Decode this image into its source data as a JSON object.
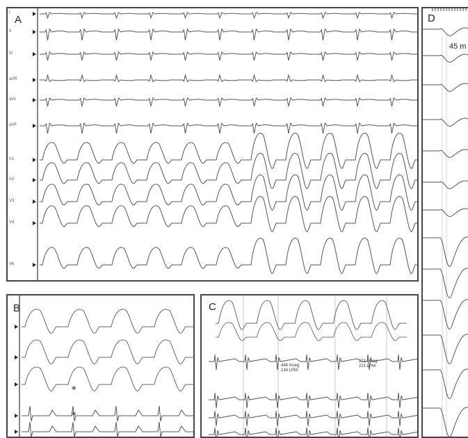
{
  "panels": {
    "A": {
      "label": "A",
      "leads": [
        "I",
        "II",
        "III",
        "aVR",
        "aVL",
        "aVF",
        "V1",
        "V2",
        "V3",
        "V4",
        "V6"
      ]
    },
    "B": {
      "label": "B",
      "markers": [
        "*",
        "*"
      ]
    },
    "C": {
      "label": "C",
      "measurements": [
        {
          "line1": "448 mseg",
          "line2": "134 LPM"
        },
        {
          "line1": "271 mseg",
          "line2": "221 LPM"
        }
      ]
    },
    "D": {
      "label": "D",
      "interval": "45 m"
    }
  }
}
